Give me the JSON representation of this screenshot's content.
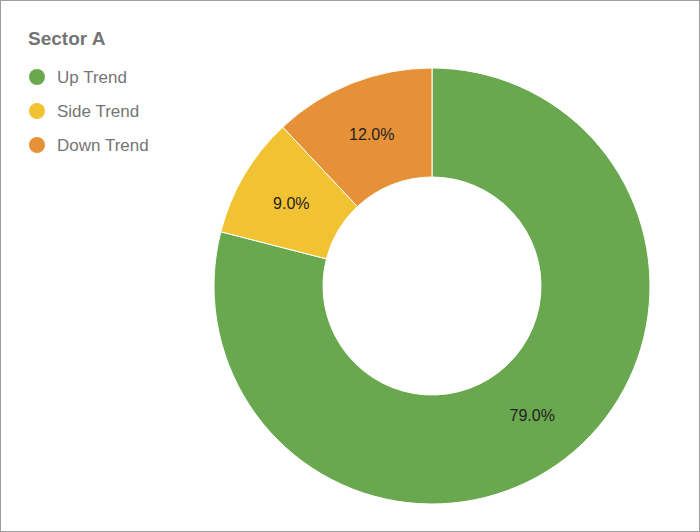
{
  "chart_data": {
    "type": "donut",
    "title": "Sector A",
    "categories": [
      "Up Trend",
      "Side Trend",
      "Down Trend"
    ],
    "values": [
      79,
      9,
      12
    ],
    "value_labels": [
      "79.0%",
      "9.0%",
      "12.0%"
    ],
    "colors": [
      "#6aa84f",
      "#f1c232",
      "#e69138"
    ],
    "data_labels": true,
    "legend": "top-left"
  }
}
